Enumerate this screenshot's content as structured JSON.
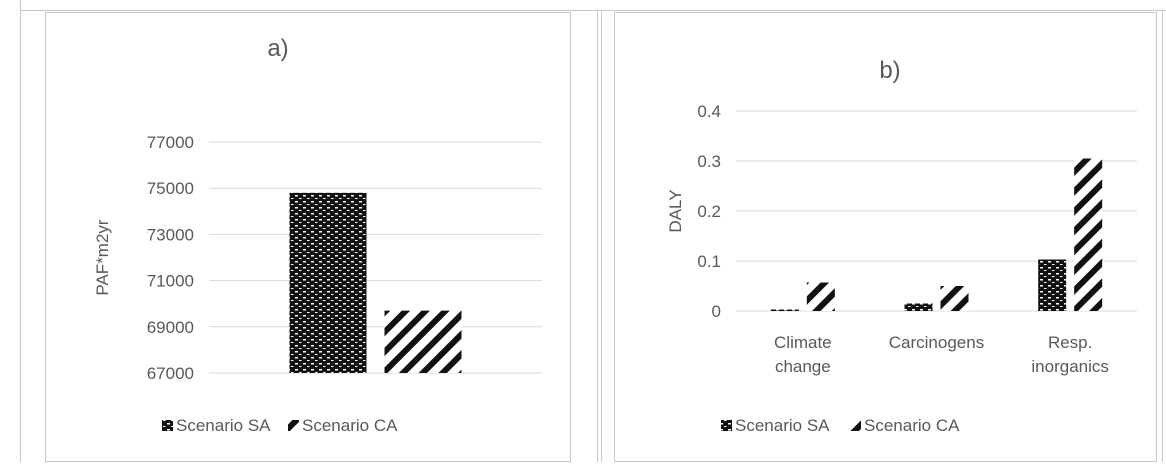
{
  "chart_data": [
    {
      "type": "bar",
      "title": "a)",
      "xlabel": "",
      "ylabel": "PAF*m2yr",
      "categories": [
        ""
      ],
      "ylim": [
        67000,
        77000
      ],
      "yticks": [
        "67000",
        "69000",
        "71000",
        "73000",
        "75000",
        "77000"
      ],
      "grid": true,
      "legend_position": "bottom",
      "series": [
        {
          "name": "Scenario SA",
          "values": [
            74800
          ]
        },
        {
          "name": "Scenario CA",
          "values": [
            69700
          ]
        }
      ]
    },
    {
      "type": "bar",
      "title": "b)",
      "xlabel": "",
      "ylabel": "DALY",
      "categories": [
        "Climate change",
        "Carcinogens",
        "Resp. inorganics"
      ],
      "ylim": [
        0,
        0.4
      ],
      "yticks": [
        "0",
        "0.1",
        "0.2",
        "0.3",
        "0.4"
      ],
      "grid": true,
      "legend_position": "bottom",
      "series": [
        {
          "name": "Scenario SA",
          "values": [
            0.003,
            0.015,
            0.103
          ]
        },
        {
          "name": "Scenario CA",
          "values": [
            0.057,
            0.05,
            0.305
          ]
        }
      ]
    }
  ]
}
